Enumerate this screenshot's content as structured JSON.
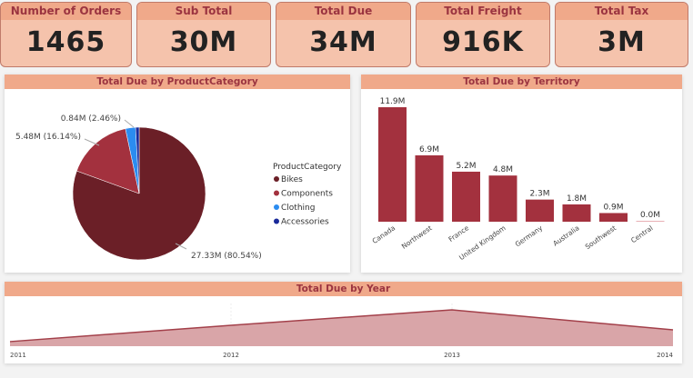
{
  "cards": [
    {
      "label": "Number of Orders",
      "value": "1465"
    },
    {
      "label": "Sub Total",
      "value": "30M"
    },
    {
      "label": "Total Due",
      "value": "34M"
    },
    {
      "label": "Total Freight",
      "value": "916K"
    },
    {
      "label": "Total Tax",
      "value": "3M"
    }
  ],
  "colors": {
    "header": "#f0a98a",
    "card_body": "#f5c3ac",
    "title_text": "#9b3440",
    "bar": "#a3313e",
    "area_line": "#a3404a",
    "area_fill": "#d9a5a8"
  },
  "chart_data": [
    {
      "type": "pie",
      "title": "Total Due by ProductCategory",
      "legend_title": "ProductCategory",
      "legend_position": "right",
      "slices": [
        {
          "name": "Bikes",
          "value": 27.33,
          "percent": 80.54,
          "label": "27.33M (80.54%)",
          "color": "#6b1f27"
        },
        {
          "name": "Components",
          "value": 5.48,
          "percent": 16.14,
          "label": "5.48M (16.14%)",
          "color": "#a3313e"
        },
        {
          "name": "Clothing",
          "value": 0.84,
          "percent": 2.46,
          "label": "0.84M (2.46%)",
          "color": "#2b8cf0"
        },
        {
          "name": "Accessories",
          "value": 0.29,
          "percent": 0.86,
          "label": "",
          "color": "#1a2a9a"
        }
      ]
    },
    {
      "type": "bar",
      "title": "Total Due by Territory",
      "categories": [
        "Canada",
        "Northwest",
        "France",
        "United Kingdom",
        "Germany",
        "Australia",
        "Southwest",
        "Central"
      ],
      "values": [
        11.9,
        6.9,
        5.2,
        4.8,
        2.3,
        1.8,
        0.9,
        0.0
      ],
      "data_labels": [
        "11.9M",
        "6.9M",
        "5.2M",
        "4.8M",
        "2.3M",
        "1.8M",
        "0.9M",
        "0.0M"
      ],
      "ylim": [
        0,
        12.5
      ]
    },
    {
      "type": "area",
      "title": "Total Due by Year",
      "categories": [
        "2011",
        "2012",
        "2013",
        "2014"
      ],
      "values": [
        2.0,
        9.1,
        15.8,
        7.1
      ]
    }
  ]
}
